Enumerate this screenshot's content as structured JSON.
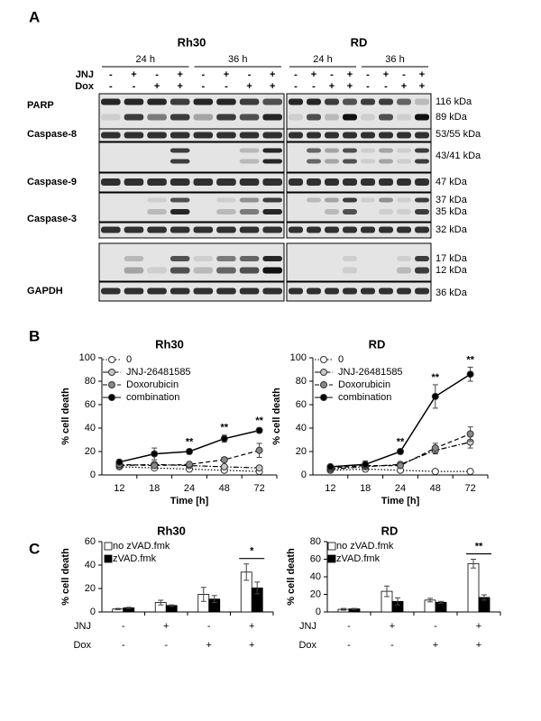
{
  "panels": [
    "A",
    "B",
    "C"
  ],
  "blot": {
    "cell_lines": [
      "Rh30",
      "RD"
    ],
    "times": [
      "24 h",
      "36 h"
    ],
    "treatment_rows": [
      {
        "label": "JNJ",
        "signs": [
          "-",
          "+",
          "-",
          "+",
          "-",
          "+",
          "-",
          "+"
        ]
      },
      {
        "label": "Dox",
        "signs": [
          "-",
          "-",
          "+",
          "+",
          "-",
          "-",
          "+",
          "+"
        ]
      }
    ],
    "proteins": [
      "PARP",
      "Caspase-8",
      "Caspase-9",
      "Caspase-3",
      "GAPDH"
    ],
    "sizes": [
      "116 kDa",
      "89 kDa",
      "53/55 kDa",
      "43/41 kDa",
      "47 kDa",
      "37 kDa",
      "35 kDa",
      "32 kDa",
      "17 kDa",
      "12 kDa",
      "36 kDa"
    ]
  },
  "chart_data": [
    {
      "type": "line",
      "title": "Rh30",
      "ylabel": "% cell death",
      "xlabel": "Time [h]",
      "categories": [
        "12",
        "18",
        "24",
        "48",
        "72"
      ],
      "ylim": [
        0,
        100
      ],
      "yticks": [
        0,
        20,
        40,
        60,
        80,
        100
      ],
      "series": [
        {
          "name": "0",
          "color": "#ffffff",
          "dash": "dotted",
          "values": [
            7,
            6,
            5,
            4,
            3
          ],
          "errors": [
            1,
            1,
            1,
            1,
            1
          ]
        },
        {
          "name": "JNJ-26481585",
          "color": "#c8c8c8",
          "dash": "dashdot",
          "values": [
            8,
            9,
            8,
            7,
            6
          ],
          "errors": [
            1,
            1,
            1,
            1,
            1
          ]
        },
        {
          "name": "Doxorubicin",
          "color": "#888888",
          "dash": "dashed",
          "values": [
            9,
            8,
            9,
            13,
            21
          ],
          "errors": [
            1,
            1,
            1,
            2,
            6
          ]
        },
        {
          "name": "combination",
          "color": "#000000",
          "dash": "solid",
          "values": [
            11,
            18,
            20,
            31,
            38
          ],
          "errors": [
            1.5,
            5,
            2,
            3,
            2
          ]
        }
      ],
      "annotations": [
        {
          "x": "24",
          "text": "**"
        },
        {
          "x": "48",
          "text": "**"
        },
        {
          "x": "72",
          "text": "**"
        }
      ]
    },
    {
      "type": "line",
      "title": "RD",
      "ylabel": "% cell death",
      "xlabel": "Time [h]",
      "categories": [
        "12",
        "18",
        "24",
        "48",
        "72"
      ],
      "ylim": [
        0,
        100
      ],
      "yticks": [
        0,
        20,
        40,
        60,
        80,
        100
      ],
      "series": [
        {
          "name": "0",
          "color": "#ffffff",
          "dash": "dotted",
          "values": [
            4,
            5,
            4,
            3,
            3
          ],
          "errors": [
            1,
            1,
            1,
            1,
            1
          ]
        },
        {
          "name": "JNJ-26481585",
          "color": "#c8c8c8",
          "dash": "dashdot",
          "values": [
            5,
            7,
            9,
            21,
            28
          ],
          "errors": [
            1,
            1,
            1,
            3,
            5
          ]
        },
        {
          "name": "Doxorubicin",
          "color": "#888888",
          "dash": "dashed",
          "values": [
            6,
            8,
            8,
            23,
            35
          ],
          "errors": [
            1,
            2,
            1,
            4,
            6
          ]
        },
        {
          "name": "combination",
          "color": "#000000",
          "dash": "solid",
          "values": [
            7,
            9,
            20,
            67,
            86
          ],
          "errors": [
            2,
            3,
            2,
            10,
            6
          ]
        }
      ],
      "annotations": [
        {
          "x": "24",
          "text": "**"
        },
        {
          "x": "48",
          "text": "**"
        },
        {
          "x": "72",
          "text": "**"
        }
      ]
    },
    {
      "type": "bar",
      "title": "Rh30",
      "ylabel": "% cell death",
      "categories": [
        null,
        null,
        null,
        null
      ],
      "ylim": [
        0,
        60
      ],
      "yticks": [
        0,
        20,
        40,
        60
      ],
      "series": [
        {
          "name": "no zVAD.fmk",
          "color": "#ffffff",
          "values": [
            2.5,
            8,
            15,
            34
          ],
          "errors": [
            0.5,
            2,
            6,
            7
          ]
        },
        {
          "name": "zVAD.fmk",
          "color": "#000000",
          "values": [
            3.5,
            5.5,
            11,
            20.5
          ],
          "errors": [
            0.5,
            0.5,
            3,
            5
          ]
        }
      ],
      "condition_rows": [
        {
          "label": "JNJ",
          "signs": [
            "-",
            "+",
            "-",
            "+"
          ]
        },
        {
          "label": "Dox",
          "signs": [
            "-",
            "-",
            "+",
            "+"
          ]
        }
      ],
      "significance": "*"
    },
    {
      "type": "bar",
      "title": "RD",
      "ylabel": "% cell death",
      "categories": [
        null,
        null,
        null,
        null
      ],
      "ylim": [
        0,
        80
      ],
      "yticks": [
        0,
        20,
        40,
        60,
        80
      ],
      "series": [
        {
          "name": "no zVAD.fmk",
          "color": "#ffffff",
          "values": [
            3,
            23.5,
            13.5,
            55
          ],
          "errors": [
            1,
            6,
            2,
            5
          ]
        },
        {
          "name": "zVAD.fmk",
          "color": "#000000",
          "values": [
            3.5,
            12,
            11,
            16.5
          ],
          "errors": [
            0.5,
            4,
            1,
            3
          ]
        }
      ],
      "condition_rows": [
        {
          "label": "JNJ",
          "signs": [
            "-",
            "+",
            "-",
            "+"
          ]
        },
        {
          "label": "Dox",
          "signs": [
            "-",
            "-",
            "+",
            "+"
          ]
        }
      ],
      "significance": "**"
    }
  ]
}
